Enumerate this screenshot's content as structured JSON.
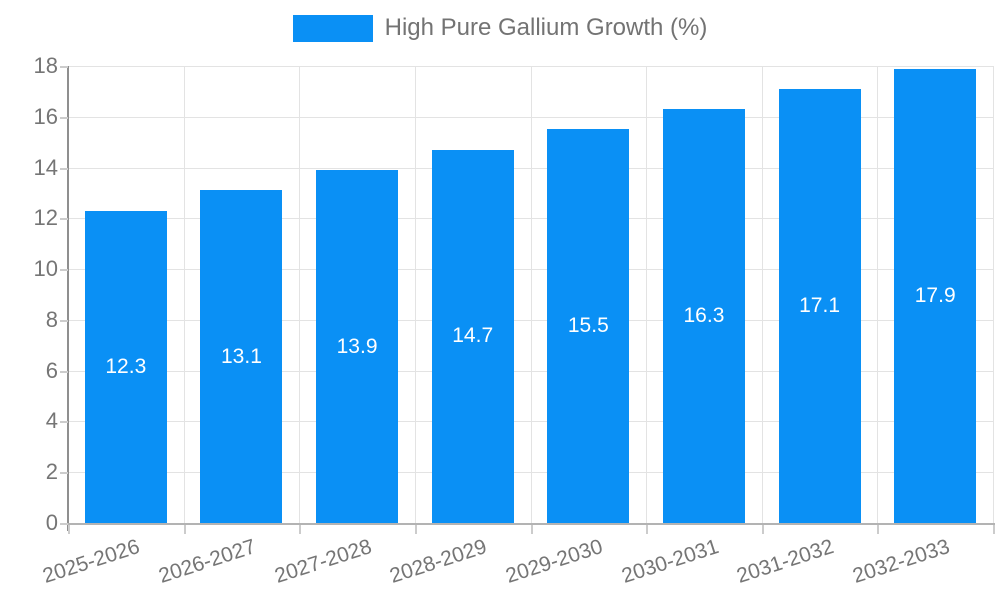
{
  "legend": {
    "label": "High Pure Gallium Growth (%)"
  },
  "chart_data": {
    "type": "bar",
    "title": "High Pure Gallium Growth (%)",
    "series_name": "High Pure Gallium Growth (%)",
    "categories": [
      "2025-2026",
      "2026-2027",
      "2027-2028",
      "2028-2029",
      "2029-2030",
      "2030-2031",
      "2031-2032",
      "2032-2033"
    ],
    "values": [
      12.3,
      13.1,
      13.9,
      14.7,
      15.5,
      16.3,
      17.1,
      17.9
    ],
    "value_labels": [
      "12.3",
      "13.1",
      "13.9",
      "14.7",
      "15.5",
      "16.3",
      "17.1",
      "17.9"
    ],
    "xlabel": "",
    "ylabel": "",
    "ylim": [
      0,
      18
    ],
    "yticks": [
      0,
      2,
      4,
      6,
      8,
      10,
      12,
      14,
      16,
      18
    ],
    "grid": true,
    "legend_position": "top",
    "bar_color": "#0a90f5",
    "value_label_color": "#ffffff",
    "grid_color": "#e3e3e3",
    "axis_text_color": "#757575",
    "y_axis_line_color": "#8f8f8f",
    "x_axis_line_color": "#b3b3b3"
  }
}
